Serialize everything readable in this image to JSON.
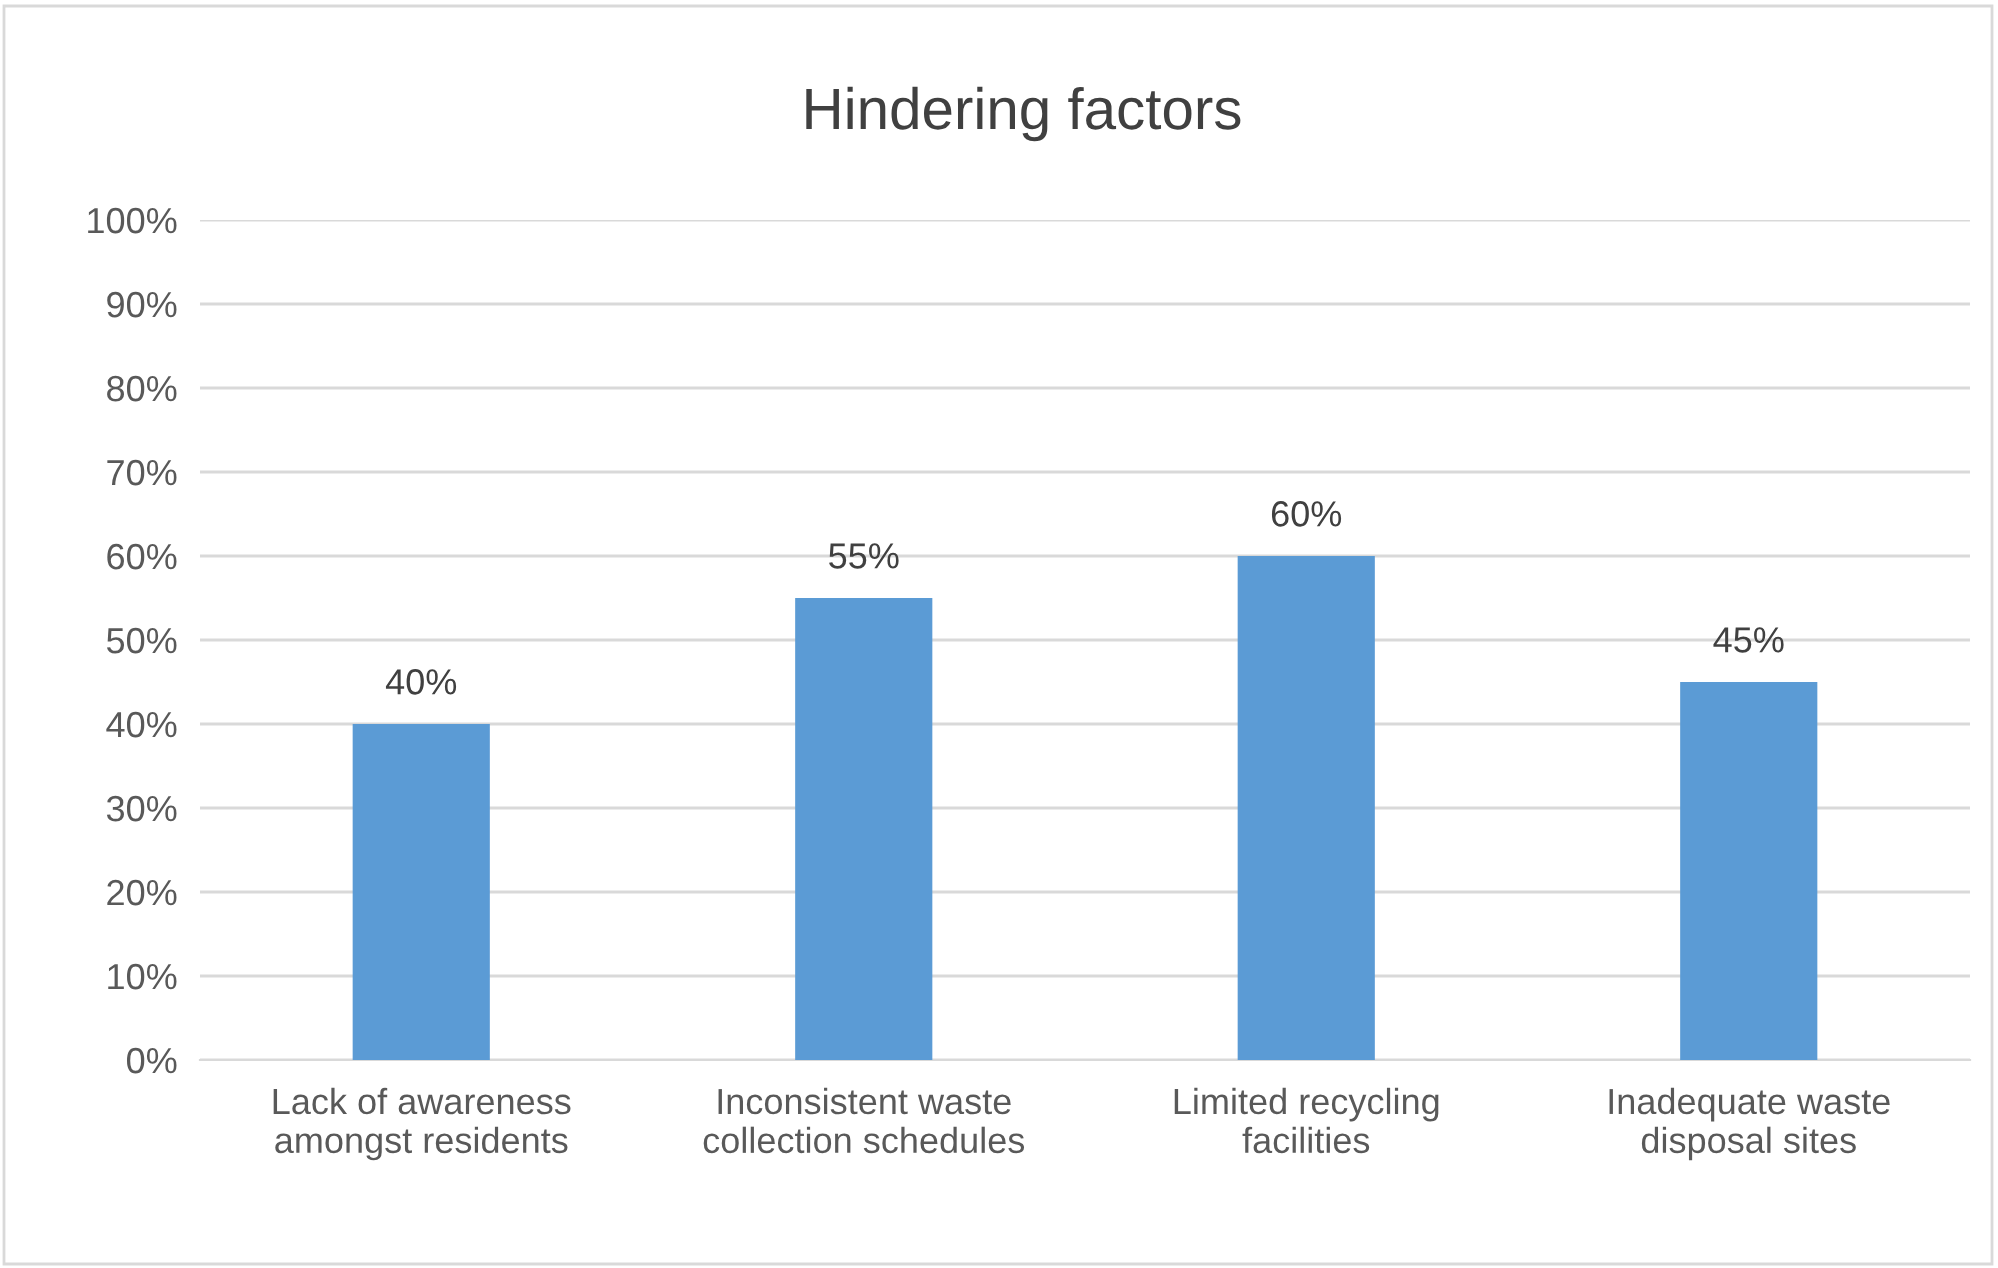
{
  "chart_data": {
    "type": "bar",
    "title": "Hindering factors",
    "categories": [
      "Lack of awareness\namongst residents",
      "Inconsistent waste\ncollection schedules",
      "Limited recycling\nfacilities",
      "Inadequate waste\ndisposal sites"
    ],
    "values": [
      40,
      55,
      60,
      45
    ],
    "value_labels": [
      "40%",
      "55%",
      "60%",
      "45%"
    ],
    "color": "#5b9bd5",
    "ylim": [
      0,
      100
    ],
    "yticks": [
      {
        "value": 0,
        "label": "0%"
      },
      {
        "value": 10,
        "label": "10%"
      },
      {
        "value": 20,
        "label": "20%"
      },
      {
        "value": 30,
        "label": "30%"
      },
      {
        "value": 40,
        "label": "40%"
      },
      {
        "value": 50,
        "label": "50%"
      },
      {
        "value": 60,
        "label": "60%"
      },
      {
        "value": 70,
        "label": "70%"
      },
      {
        "value": 80,
        "label": "80%"
      },
      {
        "value": 90,
        "label": "90%"
      },
      {
        "value": 100,
        "label": "100%"
      }
    ],
    "grid": "y"
  }
}
